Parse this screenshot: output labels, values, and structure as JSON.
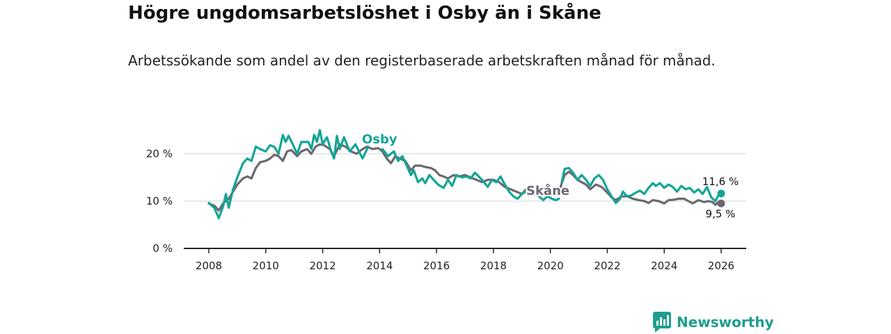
{
  "header": {
    "title": "Högre ungdomsarbetslöshet i Osby än i Skåne",
    "subtitle": "Arbetssökande som andel av den registerbaserade arbetskraften månad för månad."
  },
  "brand": {
    "name": "Newsworthy"
  },
  "colors": {
    "osby": "#13a596",
    "skane": "#6b6870",
    "grid": "#d9d9d9",
    "axis": "#222222",
    "brand": "#1f9e8e"
  },
  "chart_data": {
    "type": "line",
    "title": "Högre ungdomsarbetslöshet i Osby än i Skåne",
    "xlabel": "",
    "ylabel": "",
    "xlim": [
      2007.2,
      2026.9
    ],
    "ylim": [
      0,
      20
    ],
    "x_ticks": [
      2008,
      2010,
      2012,
      2014,
      2016,
      2018,
      2020,
      2022,
      2024,
      2026
    ],
    "x_tick_labels": [
      "2008",
      "2010",
      "2012",
      "2014",
      "2016",
      "2018",
      "2020",
      "2022",
      "2024",
      "2026"
    ],
    "y_ticks": [
      0,
      10,
      20
    ],
    "y_tick_labels": [
      "0 %",
      "10 %",
      "20 %"
    ],
    "series": [
      {
        "name": "Osby",
        "label": "Osby",
        "end_label": "11,6 %",
        "points": [
          [
            2008.0,
            9.6
          ],
          [
            2008.2,
            8.5
          ],
          [
            2008.35,
            6.4
          ],
          [
            2008.5,
            8.8
          ],
          [
            2008.6,
            11.5
          ],
          [
            2008.7,
            8.6
          ],
          [
            2008.85,
            12.5
          ],
          [
            2009.0,
            15.0
          ],
          [
            2009.2,
            18.0
          ],
          [
            2009.35,
            19.0
          ],
          [
            2009.5,
            18.5
          ],
          [
            2009.65,
            21.5
          ],
          [
            2009.8,
            21.0
          ],
          [
            2010.0,
            20.5
          ],
          [
            2010.15,
            21.8
          ],
          [
            2010.3,
            21.5
          ],
          [
            2010.45,
            20.0
          ],
          [
            2010.6,
            24.0
          ],
          [
            2010.7,
            22.5
          ],
          [
            2010.8,
            23.8
          ],
          [
            2010.95,
            22.0
          ],
          [
            2011.1,
            20.0
          ],
          [
            2011.25,
            22.5
          ],
          [
            2011.5,
            22.5
          ],
          [
            2011.6,
            21.0
          ],
          [
            2011.7,
            24.0
          ],
          [
            2011.8,
            22.5
          ],
          [
            2011.9,
            25.0
          ],
          [
            2012.0,
            22.0
          ],
          [
            2012.15,
            23.5
          ],
          [
            2012.3,
            20.5
          ],
          [
            2012.4,
            19.0
          ],
          [
            2012.5,
            23.8
          ],
          [
            2012.6,
            21.0
          ],
          [
            2012.75,
            23.5
          ],
          [
            2012.95,
            20.5
          ],
          [
            2013.15,
            22.0
          ],
          [
            2013.4,
            19.0
          ],
          [
            2013.6,
            21.5
          ]
        ]
      },
      {
        "name": "Osby-2",
        "label": "",
        "points": [
          [
            2014.1,
            21.0
          ],
          [
            2014.3,
            19.5
          ],
          [
            2014.5,
            20.5
          ],
          [
            2014.65,
            18.5
          ],
          [
            2014.8,
            19.5
          ],
          [
            2014.95,
            17.5
          ],
          [
            2015.1,
            15.5
          ],
          [
            2015.2,
            16.5
          ],
          [
            2015.35,
            14.0
          ],
          [
            2015.5,
            14.8
          ],
          [
            2015.6,
            13.8
          ],
          [
            2015.75,
            15.5
          ],
          [
            2015.9,
            14.5
          ],
          [
            2016.05,
            13.5
          ],
          [
            2016.25,
            12.8
          ],
          [
            2016.4,
            14.5
          ],
          [
            2016.55,
            13.2
          ],
          [
            2016.7,
            15.5
          ],
          [
            2016.9,
            15.0
          ],
          [
            2017.05,
            15.2
          ],
          [
            2017.2,
            14.8
          ],
          [
            2017.35,
            16.0
          ],
          [
            2017.6,
            14.5
          ],
          [
            2017.8,
            13.0
          ],
          [
            2017.95,
            14.5
          ],
          [
            2018.1,
            14.0
          ],
          [
            2018.25,
            15.2
          ],
          [
            2018.4,
            13.5
          ],
          [
            2018.55,
            12.0
          ],
          [
            2018.7,
            11.0
          ],
          [
            2018.85,
            10.5
          ],
          [
            2019.0,
            11.5
          ],
          [
            2019.2,
            12.2
          ],
          [
            2019.35,
            12.5
          ],
          [
            2019.5,
            11.8
          ],
          [
            2019.6,
            11.0
          ],
          [
            2019.75,
            10.2
          ],
          [
            2019.9,
            11.0
          ],
          [
            2020.05,
            10.5
          ],
          [
            2020.2,
            10.2
          ],
          [
            2020.3,
            10.5
          ]
        ]
      },
      {
        "name": "Osby-3",
        "label": "",
        "points": [
          [
            2020.4,
            14.0
          ],
          [
            2020.5,
            16.8
          ],
          [
            2020.65,
            17.0
          ],
          [
            2020.8,
            16.0
          ],
          [
            2020.95,
            14.5
          ],
          [
            2021.1,
            15.5
          ],
          [
            2021.25,
            14.5
          ],
          [
            2021.4,
            13.2
          ],
          [
            2021.55,
            14.8
          ],
          [
            2021.7,
            15.5
          ],
          [
            2021.85,
            14.5
          ],
          [
            2022.0,
            12.5
          ],
          [
            2022.15,
            11.0
          ],
          [
            2022.3,
            9.6
          ],
          [
            2022.45,
            10.5
          ],
          [
            2022.55,
            12.0
          ],
          [
            2022.7,
            11.0
          ],
          [
            2022.85,
            11.2
          ],
          [
            2023.0,
            11.8
          ],
          [
            2023.15,
            12.2
          ],
          [
            2023.3,
            11.5
          ],
          [
            2023.45,
            12.8
          ],
          [
            2023.6,
            13.8
          ],
          [
            2023.7,
            13.2
          ],
          [
            2023.85,
            13.8
          ],
          [
            2024.0,
            12.8
          ],
          [
            2024.15,
            13.5
          ],
          [
            2024.3,
            13.0
          ],
          [
            2024.45,
            12.0
          ],
          [
            2024.6,
            13.2
          ],
          [
            2024.75,
            12.5
          ],
          [
            2024.9,
            12.8
          ],
          [
            2025.05,
            11.8
          ],
          [
            2025.2,
            12.5
          ],
          [
            2025.35,
            11.5
          ],
          [
            2025.5,
            13.0
          ],
          [
            2025.65,
            10.8
          ],
          [
            2025.8,
            10.0
          ],
          [
            2025.9,
            11.2
          ],
          [
            2026.0,
            11.6
          ]
        ]
      },
      {
        "name": "Skåne",
        "label": "Skåne",
        "end_label": "9,5 %",
        "points": [
          [
            2008.0,
            9.5
          ],
          [
            2008.2,
            9.0
          ],
          [
            2008.35,
            8.0
          ],
          [
            2008.5,
            9.5
          ],
          [
            2008.7,
            10.5
          ],
          [
            2008.85,
            12.0
          ],
          [
            2009.0,
            13.5
          ],
          [
            2009.2,
            14.8
          ],
          [
            2009.35,
            15.2
          ],
          [
            2009.5,
            14.8
          ],
          [
            2009.65,
            17.0
          ],
          [
            2009.8,
            18.2
          ],
          [
            2010.0,
            18.5
          ],
          [
            2010.15,
            19.0
          ],
          [
            2010.3,
            19.8
          ],
          [
            2010.45,
            19.5
          ],
          [
            2010.6,
            18.5
          ],
          [
            2010.75,
            20.5
          ],
          [
            2010.9,
            20.8
          ],
          [
            2011.1,
            19.5
          ],
          [
            2011.25,
            20.5
          ],
          [
            2011.45,
            21.0
          ],
          [
            2011.6,
            20.0
          ],
          [
            2011.75,
            21.5
          ],
          [
            2011.9,
            22.0
          ],
          [
            2012.05,
            21.8
          ],
          [
            2012.25,
            21.0
          ],
          [
            2012.4,
            19.5
          ],
          [
            2012.6,
            22.0
          ],
          [
            2012.8,
            21.5
          ],
          [
            2013.0,
            20.5
          ],
          [
            2013.2,
            20.0
          ],
          [
            2013.35,
            20.8
          ],
          [
            2013.55,
            21.5
          ],
          [
            2013.75,
            21.0
          ],
          [
            2013.95,
            21.2
          ],
          [
            2014.1,
            20.5
          ],
          [
            2014.25,
            19.0
          ],
          [
            2014.4,
            18.0
          ],
          [
            2014.55,
            19.5
          ],
          [
            2014.7,
            19.0
          ],
          [
            2014.9,
            18.5
          ],
          [
            2015.1,
            16.5
          ],
          [
            2015.25,
            17.5
          ],
          [
            2015.45,
            17.5
          ],
          [
            2015.6,
            17.2
          ],
          [
            2015.8,
            17.0
          ],
          [
            2015.95,
            16.5
          ],
          [
            2016.1,
            15.5
          ],
          [
            2016.25,
            15.2
          ],
          [
            2016.4,
            14.8
          ],
          [
            2016.6,
            15.5
          ],
          [
            2016.8,
            15.2
          ],
          [
            2017.0,
            15.5
          ],
          [
            2017.2,
            15.0
          ],
          [
            2017.4,
            14.5
          ],
          [
            2017.6,
            14.0
          ],
          [
            2017.8,
            14.5
          ],
          [
            2018.0,
            14.5
          ],
          [
            2018.2,
            14.0
          ],
          [
            2018.4,
            13.0
          ],
          [
            2018.6,
            12.5
          ],
          [
            2018.8,
            12.0
          ],
          [
            2019.0,
            11.5
          ],
          [
            2019.15,
            12.5
          ],
          [
            2019.3,
            12.0
          ],
          [
            2019.5,
            11.2
          ],
          [
            2019.7,
            11.5
          ],
          [
            2019.9,
            11.8
          ],
          [
            2020.1,
            11.5
          ],
          [
            2020.3,
            12.0
          ],
          [
            2020.5,
            15.5
          ],
          [
            2020.65,
            16.2
          ],
          [
            2020.8,
            15.5
          ],
          [
            2020.95,
            14.5
          ],
          [
            2021.1,
            14.0
          ],
          [
            2021.25,
            13.5
          ],
          [
            2021.4,
            12.5
          ],
          [
            2021.6,
            13.5
          ],
          [
            2021.8,
            13.0
          ],
          [
            2022.0,
            11.8
          ],
          [
            2022.15,
            10.8
          ],
          [
            2022.3,
            10.2
          ],
          [
            2022.5,
            11.0
          ],
          [
            2022.7,
            11.0
          ],
          [
            2022.9,
            10.5
          ],
          [
            2023.1,
            10.2
          ],
          [
            2023.3,
            10.0
          ],
          [
            2023.45,
            9.6
          ],
          [
            2023.6,
            10.2
          ],
          [
            2023.8,
            10.0
          ],
          [
            2024.0,
            9.5
          ],
          [
            2024.15,
            10.2
          ],
          [
            2024.35,
            10.3
          ],
          [
            2024.5,
            10.5
          ],
          [
            2024.7,
            10.5
          ],
          [
            2024.85,
            10.0
          ],
          [
            2025.0,
            9.5
          ],
          [
            2025.2,
            10.2
          ],
          [
            2025.4,
            9.8
          ],
          [
            2025.55,
            10.0
          ],
          [
            2025.7,
            9.8
          ],
          [
            2025.8,
            9.2
          ],
          [
            2025.9,
            9.8
          ],
          [
            2026.0,
            9.5
          ]
        ]
      }
    ]
  }
}
